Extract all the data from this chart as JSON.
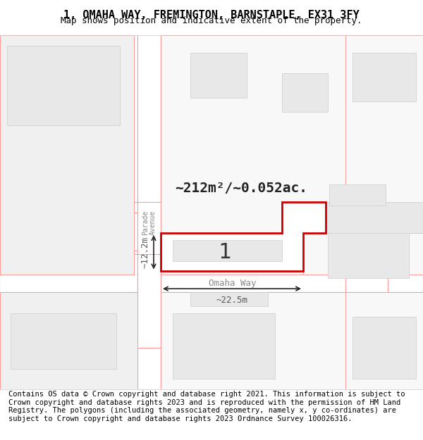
{
  "title_line1": "1, OMAHA WAY, FREMINGTON, BARNSTAPLE, EX31 3FY",
  "title_line2": "Map shows position and indicative extent of the property.",
  "footer_text": "Contains OS data © Crown copyright and database right 2021. This information is subject to Crown copyright and database rights 2023 and is reproduced with the permission of HM Land Registry. The polygons (including the associated geometry, namely x, y co-ordinates) are subject to Crown copyright and database rights 2023 Ordnance Survey 100026316.",
  "area_label": "~212m²/~0.052ac.",
  "width_label": "~22.5m",
  "height_label": "~12.2m",
  "plot_number": "1",
  "street_label": "Omaha Way",
  "side_street_label": "Parade\nAvenue",
  "bg_color": "#f5f5f5",
  "map_bg": "#ffffff",
  "block_color": "#e8e8e8",
  "block_border": "#cccccc",
  "plot_outline_color": "#cc0000",
  "road_color": "#ffffff",
  "road_border": "#dddddd",
  "pink_line_color": "#ff9999",
  "dim_line_color": "#222222",
  "title_fontsize": 11,
  "footer_fontsize": 7.5
}
